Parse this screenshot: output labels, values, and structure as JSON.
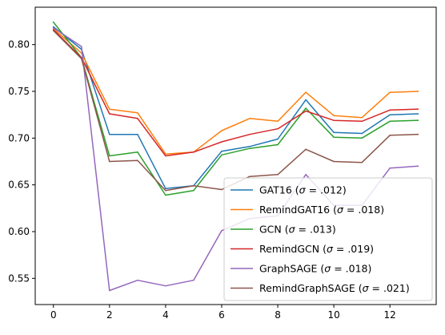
{
  "chart_data": {
    "type": "line",
    "title": "",
    "xlabel": "",
    "ylabel": "",
    "x": [
      0,
      1,
      2,
      3,
      4,
      5,
      6,
      7,
      8,
      9,
      10,
      11,
      12,
      13
    ],
    "xlim": [
      -0.65,
      13.65
    ],
    "ylim": [
      0.522,
      0.84
    ],
    "x_ticks": [
      0,
      2,
      4,
      6,
      8,
      10,
      12
    ],
    "x_tick_labels": [
      "0",
      "2",
      "4",
      "6",
      "8",
      "10",
      "12"
    ],
    "y_ticks": [
      0.55,
      0.6,
      0.65,
      0.7,
      0.75,
      0.8
    ],
    "y_tick_labels": [
      "0.55",
      "0.60",
      "0.65",
      "0.70",
      "0.75",
      "0.80"
    ],
    "grid": false,
    "legend_position": "lower-right",
    "series": [
      {
        "name": "GAT16",
        "sigma": ".012",
        "color": "#1f77b4",
        "values": [
          0.819,
          0.795,
          0.704,
          0.704,
          0.646,
          0.649,
          0.686,
          0.691,
          0.699,
          0.741,
          0.706,
          0.705,
          0.725,
          0.726
        ]
      },
      {
        "name": "RemindGAT16",
        "sigma": ".018",
        "color": "#ff7f0e",
        "values": [
          0.817,
          0.791,
          0.731,
          0.727,
          0.683,
          0.685,
          0.708,
          0.721,
          0.718,
          0.749,
          0.724,
          0.722,
          0.749,
          0.75
        ]
      },
      {
        "name": "GCN",
        "sigma": ".013",
        "color": "#2ca02c",
        "values": [
          0.824,
          0.786,
          0.681,
          0.685,
          0.639,
          0.644,
          0.682,
          0.689,
          0.693,
          0.732,
          0.701,
          0.7,
          0.718,
          0.719
        ]
      },
      {
        "name": "RemindGCN",
        "sigma": ".019",
        "color": "#d62728",
        "values": [
          0.816,
          0.786,
          0.726,
          0.721,
          0.681,
          0.685,
          0.696,
          0.704,
          0.71,
          0.729,
          0.719,
          0.718,
          0.73,
          0.731
        ]
      },
      {
        "name": "GraphSAGE",
        "sigma": ".018",
        "color": "#9467bd",
        "values": [
          0.818,
          0.798,
          0.537,
          0.548,
          0.542,
          0.548,
          0.601,
          0.614,
          0.617,
          0.661,
          0.628,
          0.628,
          0.668,
          0.67
        ]
      },
      {
        "name": "RemindGraphSAGE",
        "sigma": ".021",
        "color": "#8c564b",
        "values": [
          0.815,
          0.785,
          0.675,
          0.676,
          0.644,
          0.649,
          0.645,
          0.659,
          0.661,
          0.688,
          0.675,
          0.674,
          0.703,
          0.704
        ]
      }
    ]
  }
}
